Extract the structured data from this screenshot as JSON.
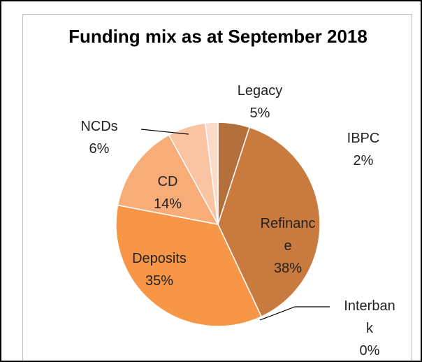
{
  "chart_data": {
    "type": "pie",
    "title": "Funding mix as at September 2018",
    "categories": [
      "Legacy",
      "Refinance",
      "Interbank",
      "Deposits",
      "CD",
      "NCDs",
      "IBPC"
    ],
    "values": [
      5,
      38,
      0,
      35,
      14,
      6,
      2
    ],
    "value_labels": [
      "5%",
      "38%",
      "0%",
      "35%",
      "14%",
      "6%",
      "2%"
    ],
    "colors": [
      "#b4703c",
      "#c97b3f",
      "#d9843f",
      "#f79646",
      "#f8ad78",
      "#fac3a1",
      "#fcd9c8"
    ]
  }
}
